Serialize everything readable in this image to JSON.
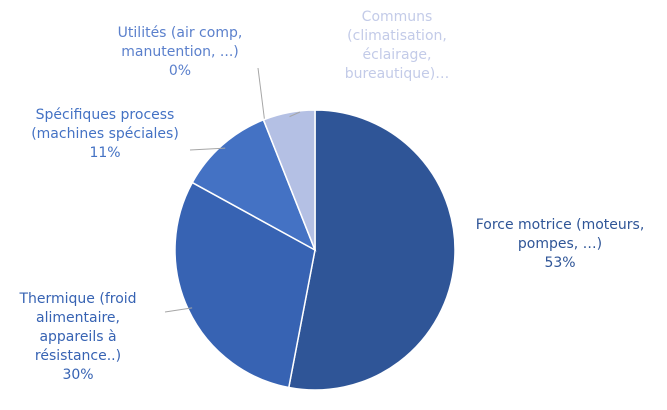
{
  "chart_data": {
    "type": "pie",
    "categories": [
      "Force motrice (moteurs, pompes, …)",
      "Thermique (froid alimentaire, appareils à résistance..)",
      "Spécifiques process (machines spéciales)",
      "Utilités (air comp, manutention, ...)",
      "Communs (climatisation, éclairage, bureautique)…"
    ],
    "values": [
      53,
      30,
      11,
      0,
      6
    ],
    "value_labels": [
      "53%",
      "30%",
      "11%",
      "0%",
      null
    ],
    "colors": [
      "#2f5597",
      "#3763b3",
      "#4472c4",
      "#5b80cc",
      "#b4c0e4"
    ]
  }
}
